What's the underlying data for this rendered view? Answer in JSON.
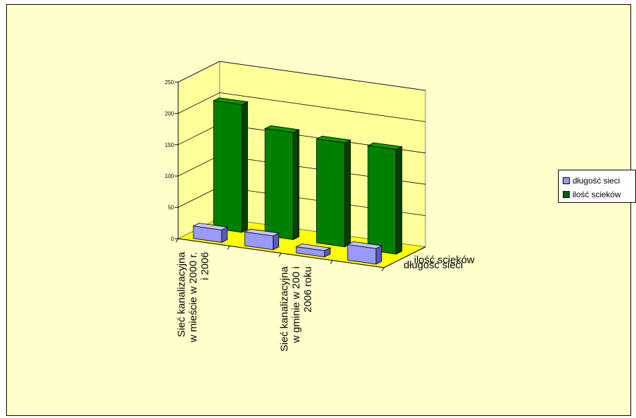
{
  "chart_data": {
    "type": "bar",
    "subtype": "3d-column",
    "categories": [
      "Sieć kanalizacyjna w mieście w 2000 r. i 2006",
      "",
      "Sieć kanalizacyjna w gminie w 200 i 2006 roku",
      ""
    ],
    "series": [
      {
        "name": "długość sieci",
        "values": [
          20,
          22,
          10,
          25
        ]
      },
      {
        "name": "ilość scieków",
        "values": [
          204,
          171,
          166,
          167
        ]
      }
    ],
    "y_ticks": [
      "0",
      "50",
      "100",
      "150",
      "200",
      "250"
    ],
    "ylim": [
      0,
      250
    ],
    "grid": true,
    "legend_position": "right",
    "colors": {
      "series_front": "#9999FF",
      "series_back": "#006600",
      "floor": "#FFFF00",
      "walls": "#FFFF99",
      "chart_background": "#FFFFCC"
    }
  }
}
